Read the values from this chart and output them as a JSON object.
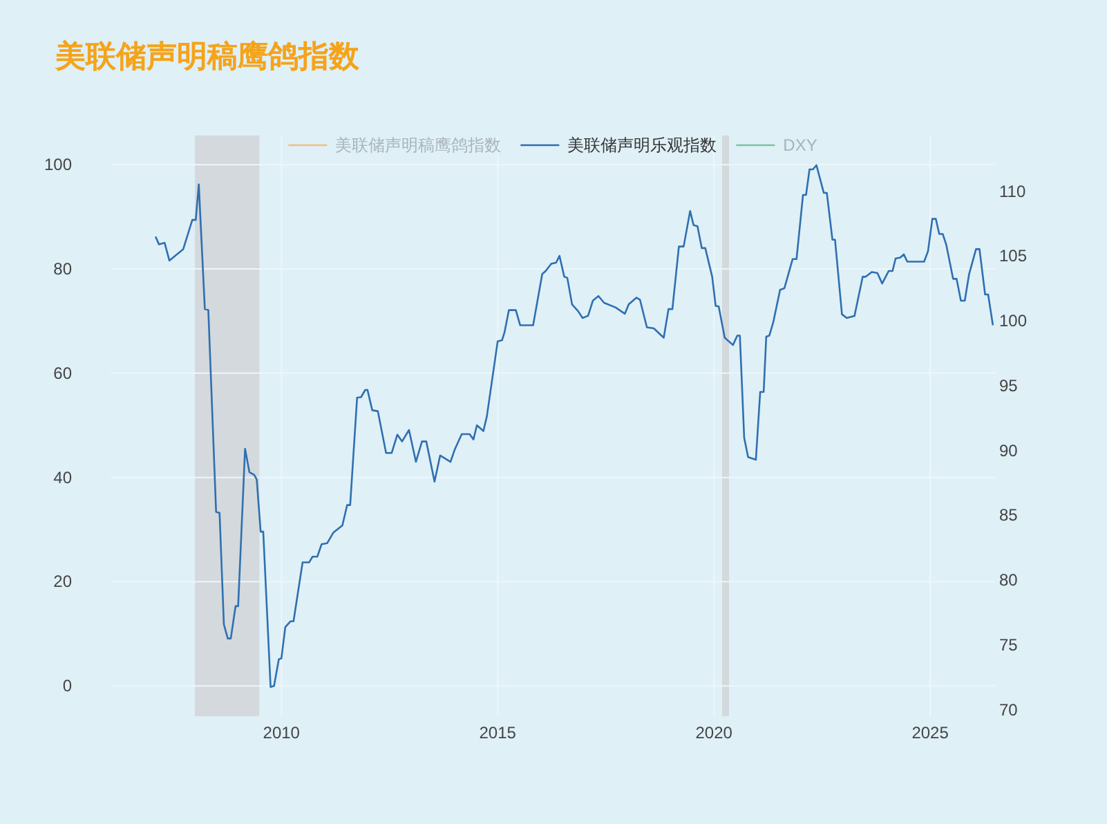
{
  "chart_data": {
    "type": "line",
    "title": "美联储声明稿鹰鸽指数",
    "xlim": [
      2006.05,
      2026.5
    ],
    "xticks": [
      2010,
      2015,
      2020,
      2025
    ],
    "ylim": [
      -5.8,
      105.6
    ],
    "yticks": [
      0,
      20,
      40,
      60,
      80,
      100
    ],
    "y2lim": [
      69.5,
      114.3
    ],
    "y2ticks": [
      70,
      75,
      80,
      85,
      90,
      95,
      100,
      105,
      110
    ],
    "grid": true,
    "legend": "top",
    "line_style": "solid",
    "marker": "none",
    "bands": [
      {
        "axis": "x",
        "from": 2008.0,
        "to": 2009.49,
        "color": "#d3d9dc"
      },
      {
        "axis": "x",
        "from": 2020.19,
        "to": 2020.35,
        "color": "#d3d9dc"
      }
    ],
    "series": [
      {
        "name": "美联储声明稿鹰鸽指数",
        "color": "#f0c080"
      },
      {
        "name": "美联储声明乐观指数",
        "color": "#2f6fb0",
        "x": [
          2007.09,
          2007.17,
          2007.3,
          2007.41,
          2007.54,
          2007.73,
          2007.94,
          2008.02,
          2008.09,
          2008.23,
          2008.31,
          2008.49,
          2008.57,
          2008.67,
          2008.76,
          2008.83,
          2008.94,
          2009.0,
          2009.16,
          2009.26,
          2009.37,
          2009.43,
          2009.52,
          2009.58,
          2009.75,
          2009.83,
          2009.94,
          2010.0,
          2010.09,
          2010.21,
          2010.28,
          2010.49,
          2010.64,
          2010.72,
          2010.83,
          2010.93,
          2011.06,
          2011.2,
          2011.41,
          2011.52,
          2011.59,
          2011.75,
          2011.84,
          2011.94,
          2011.99,
          2012.1,
          2012.23,
          2012.42,
          2012.55,
          2012.68,
          2012.79,
          2012.95,
          2013.11,
          2013.25,
          2013.35,
          2013.54,
          2013.67,
          2013.91,
          2014.01,
          2014.17,
          2014.35,
          2014.44,
          2014.52,
          2014.67,
          2014.75,
          2015.0,
          2015.1,
          2015.16,
          2015.26,
          2015.42,
          2015.52,
          2015.82,
          2016.03,
          2016.11,
          2016.24,
          2016.35,
          2016.43,
          2016.54,
          2016.61,
          2016.72,
          2016.86,
          2016.96,
          2017.09,
          2017.2,
          2017.33,
          2017.46,
          2017.73,
          2017.94,
          2018.03,
          2018.21,
          2018.29,
          2018.45,
          2018.61,
          2018.84,
          2018.95,
          2019.04,
          2019.19,
          2019.3,
          2019.45,
          2019.53,
          2019.62,
          2019.72,
          2019.8,
          2019.96,
          2020.04,
          2020.11,
          2020.25,
          2020.44,
          2020.54,
          2020.6,
          2020.7,
          2020.79,
          2020.97,
          2021.07,
          2021.15,
          2021.21,
          2021.28,
          2021.37,
          2021.53,
          2021.63,
          2021.82,
          2021.91,
          2022.06,
          2022.13,
          2022.21,
          2022.29,
          2022.37,
          2022.54,
          2022.61,
          2022.74,
          2022.8,
          2022.96,
          2023.07,
          2023.25,
          2023.44,
          2023.51,
          2023.65,
          2023.78,
          2023.89,
          2024.04,
          2024.13,
          2024.2,
          2024.31,
          2024.39,
          2024.47,
          2024.86,
          2024.95,
          2025.05,
          2025.13,
          2025.21,
          2025.29,
          2025.37,
          2025.53,
          2025.61,
          2025.71,
          2025.8,
          2025.9,
          2026.06,
          2026.14,
          2026.27,
          2026.34,
          2026.45
        ],
        "values": [
          86.2,
          84.7,
          85.0,
          81.6,
          82.5,
          83.8,
          89.4,
          89.4,
          96.2,
          72.3,
          72.1,
          33.4,
          33.2,
          11.8,
          9.1,
          9.1,
          15.3,
          15.3,
          45.5,
          41.0,
          40.5,
          39.6,
          29.6,
          29.6,
          -0.2,
          0.0,
          5.1,
          5.3,
          11.3,
          12.4,
          12.4,
          23.7,
          23.7,
          24.8,
          24.8,
          27.2,
          27.4,
          29.4,
          30.8,
          34.7,
          34.7,
          55.3,
          55.4,
          56.8,
          56.8,
          52.9,
          52.7,
          44.7,
          44.7,
          48.2,
          46.9,
          49.1,
          43.0,
          46.9,
          46.9,
          39.2,
          44.2,
          43.0,
          45.4,
          48.3,
          48.3,
          47.3,
          50.0,
          48.9,
          51.7,
          66.1,
          66.3,
          67.9,
          72.1,
          72.1,
          69.2,
          69.2,
          79.0,
          79.6,
          81.0,
          81.2,
          82.5,
          78.5,
          78.3,
          73.2,
          71.9,
          70.6,
          71.0,
          73.9,
          74.8,
          73.5,
          72.6,
          71.4,
          73.2,
          74.5,
          74.1,
          68.8,
          68.6,
          66.8,
          72.3,
          72.3,
          84.3,
          84.3,
          91.1,
          88.4,
          88.2,
          84.0,
          84.0,
          78.5,
          72.9,
          72.8,
          66.8,
          65.4,
          67.2,
          67.2,
          47.6,
          43.9,
          43.4,
          56.4,
          56.4,
          67.0,
          67.2,
          69.7,
          76.0,
          76.3,
          81.9,
          81.9,
          94.2,
          94.2,
          99.1,
          99.1,
          99.9,
          94.6,
          94.6,
          85.6,
          85.6,
          71.3,
          70.6,
          71.0,
          78.5,
          78.5,
          79.4,
          79.2,
          77.2,
          79.6,
          79.6,
          82.0,
          82.2,
          82.8,
          81.4,
          81.4,
          83.4,
          89.6,
          89.6,
          86.7,
          86.7,
          84.7,
          78.1,
          78.1,
          73.9,
          73.9,
          79.0,
          83.8,
          83.8,
          75.1,
          75.1,
          69.2
        ]
      },
      {
        "name": "DXY",
        "color": "#7cc4a0"
      }
    ]
  }
}
